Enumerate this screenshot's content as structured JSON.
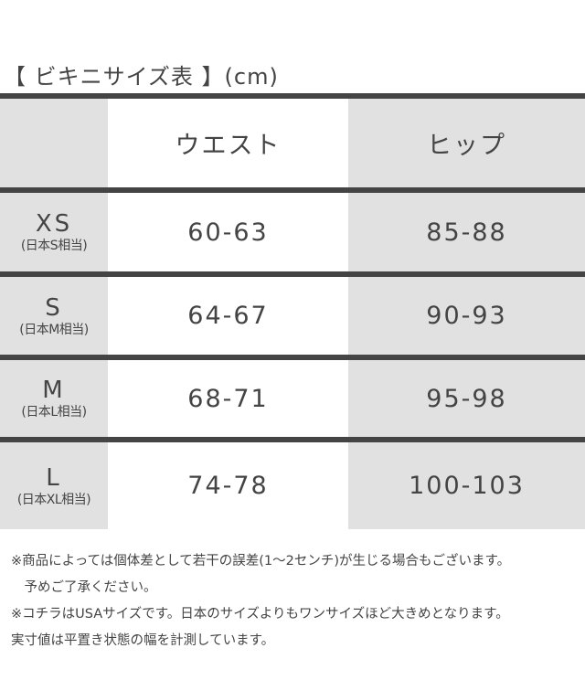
{
  "title": "【 ビキニサイズ表 】(cm)",
  "header": {
    "corner": "",
    "waist": "ウエスト",
    "hip": "ヒップ"
  },
  "rows": [
    {
      "size": "XS",
      "jp": "(日本S相当)",
      "waist": "60-63",
      "hip": "85-88"
    },
    {
      "size": "S",
      "jp": "(日本M相当)",
      "waist": "64-67",
      "hip": "90-93"
    },
    {
      "size": "M",
      "jp": "(日本L相当)",
      "waist": "68-71",
      "hip": "95-98"
    },
    {
      "size": "L",
      "jp": "(日本XL相当)",
      "waist": "74-78",
      "hip": "100-103"
    }
  ],
  "notes": [
    "※商品によっては個体差として若干の誤差(1〜2センチ)が生じる場合もございます。",
    "　予めご了承ください。",
    "※コチラはUSAサイズです。日本のサイズよりもワンサイズほど大きめとなります。",
    "実寸値は平置き状態の幅を計測しています。"
  ],
  "colors": {
    "text": "#444444",
    "cell_gray": "#e1e1e1",
    "divider": "#444444"
  }
}
